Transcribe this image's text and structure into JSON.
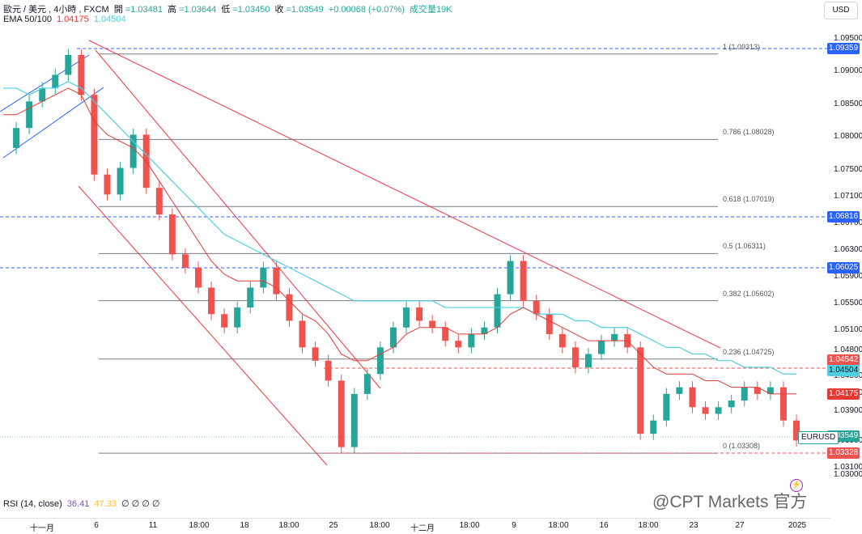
{
  "legend": {
    "symbol": "歐元 / 美元",
    "interval": "4小時",
    "exchange": "FXCM",
    "open_label": "開",
    "open": "=1.03481",
    "high_label": "高",
    "high": "=1.03644",
    "low_label": "低",
    "low": "=1.03450",
    "close_label": "收",
    "close": "=1.03549",
    "change": "+0.00068 (+0.07%)",
    "volume": "成交量19K",
    "ema_label": "EMA 50/100",
    "ema50": "1.04175",
    "ema100": "1.04504",
    "rsi_label": "RSI (14, close)",
    "rsi_value": "36.41",
    "rsi_ma": "47.33",
    "rsi_rest": "∅ ∅ ∅ ∅"
  },
  "currency_button": "USD",
  "colors": {
    "up": "#26a69a",
    "down": "#ef5350",
    "ema50": "#e53935",
    "ema100": "#4dd0e1",
    "fib": "#787b86",
    "dash_blue": "#2962ff",
    "channel_blue": "#2962ff",
    "trend_red": "#f23645"
  },
  "price_ticks": [
    "1.09500",
    "1.09000",
    "1.08500",
    "1.08000",
    "1.07500",
    "1.07100",
    "1.06700",
    "1.06300",
    "1.05900",
    "1.05500",
    "1.05100",
    "1.04800",
    "1.04500",
    "1.04100",
    "1.03900",
    "1.03500",
    "1.03100",
    "1.03000"
  ],
  "price_tags": [
    {
      "label": "1.09359",
      "color": "#2962ff"
    },
    {
      "label": "1.06816",
      "color": "#2962ff"
    },
    {
      "label": "1.06025",
      "color": "#2962ff"
    },
    {
      "label": "1.04542",
      "color": "#ef5350"
    },
    {
      "label": "1.04504",
      "color": "#4dd0e1"
    },
    {
      "label": "1.04175",
      "color": "#e53935"
    },
    {
      "label": "1.03549",
      "color": "#26a69a"
    },
    {
      "label": "1.03328",
      "color": "#ef5350"
    }
  ],
  "symbol_tag": "EURUSD",
  "fib_levels": [
    {
      "label": "1 (1.09313)",
      "price": 1.09313
    },
    {
      "label": "0.786 (1.08028)",
      "price": 1.08028
    },
    {
      "label": "0.618 (1.07019)",
      "price": 1.07019
    },
    {
      "label": "0.5 (1.06311)",
      "price": 1.06311
    },
    {
      "label": "0.382 (1.05602)",
      "price": 1.05602
    },
    {
      "label": "0.236 (1.04725)",
      "price": 1.04725
    },
    {
      "label": "0 (1.03308)",
      "price": 1.03308
    }
  ],
  "time_labels": [
    "十一月",
    "6",
    "11",
    "18:00",
    "18",
    "18:00",
    "25",
    "18:00",
    "十二月",
    "18:00",
    "9",
    "18:00",
    "16",
    "18:00",
    "23",
    "27",
    "2025"
  ],
  "watermark": "@CPT Markets 官方",
  "chart_data": {
    "type": "line",
    "title": "歐元 / 美元, 4小時, FXCM",
    "x_range": [
      "十一月",
      "2025"
    ],
    "ylim": [
      1.03,
      1.096
    ],
    "series": [
      {
        "name": "EURUSD",
        "values": [
          1.079,
          1.082,
          1.086,
          1.088,
          1.09,
          1.093,
          1.087,
          1.075,
          1.072,
          1.076,
          1.081,
          1.073,
          1.069,
          1.063,
          1.061,
          1.058,
          1.054,
          1.052,
          1.055,
          1.058,
          1.061,
          1.057,
          1.053,
          1.049,
          1.047,
          1.044,
          1.034,
          1.042,
          1.045,
          1.049,
          1.052,
          1.055,
          1.053,
          1.052,
          1.05,
          1.049,
          1.051,
          1.052,
          1.057,
          1.062,
          1.056,
          1.054,
          1.051,
          1.049,
          1.046,
          1.048,
          1.05,
          1.051,
          1.049,
          1.036,
          1.038,
          1.042,
          1.043,
          1.04,
          1.039,
          1.04,
          1.041,
          1.043,
          1.042,
          1.043,
          1.038,
          1.035
        ]
      },
      {
        "name": "EMA 50",
        "values": [
          1.084,
          1.084,
          1.085,
          1.086,
          1.087,
          1.088,
          1.087,
          1.083,
          1.081,
          1.08,
          1.079,
          1.077,
          1.074,
          1.071,
          1.068,
          1.065,
          1.062,
          1.06,
          1.059,
          1.059,
          1.059,
          1.058,
          1.056,
          1.054,
          1.053,
          1.051,
          1.048,
          1.047,
          1.047,
          1.048,
          1.049,
          1.051,
          1.052,
          1.052,
          1.052,
          1.051,
          1.051,
          1.051,
          1.052,
          1.054,
          1.055,
          1.054,
          1.053,
          1.052,
          1.051,
          1.05,
          1.05,
          1.05,
          1.05,
          1.048,
          1.046,
          1.045,
          1.045,
          1.045,
          1.044,
          1.044,
          1.043,
          1.043,
          1.043,
          1.042,
          1.042,
          1.042
        ]
      },
      {
        "name": "EMA 100",
        "values": [
          1.088,
          1.088,
          1.087,
          1.088,
          1.088,
          1.089,
          1.088,
          1.086,
          1.084,
          1.082,
          1.08,
          1.078,
          1.076,
          1.074,
          1.072,
          1.07,
          1.068,
          1.066,
          1.065,
          1.064,
          1.063,
          1.062,
          1.061,
          1.06,
          1.059,
          1.058,
          1.057,
          1.056,
          1.056,
          1.056,
          1.056,
          1.056,
          1.056,
          1.056,
          1.055,
          1.055,
          1.055,
          1.055,
          1.055,
          1.055,
          1.055,
          1.054,
          1.054,
          1.054,
          1.053,
          1.053,
          1.052,
          1.052,
          1.052,
          1.051,
          1.05,
          1.049,
          1.049,
          1.048,
          1.048,
          1.047,
          1.047,
          1.046,
          1.046,
          1.046,
          1.045,
          1.045
        ]
      }
    ]
  }
}
